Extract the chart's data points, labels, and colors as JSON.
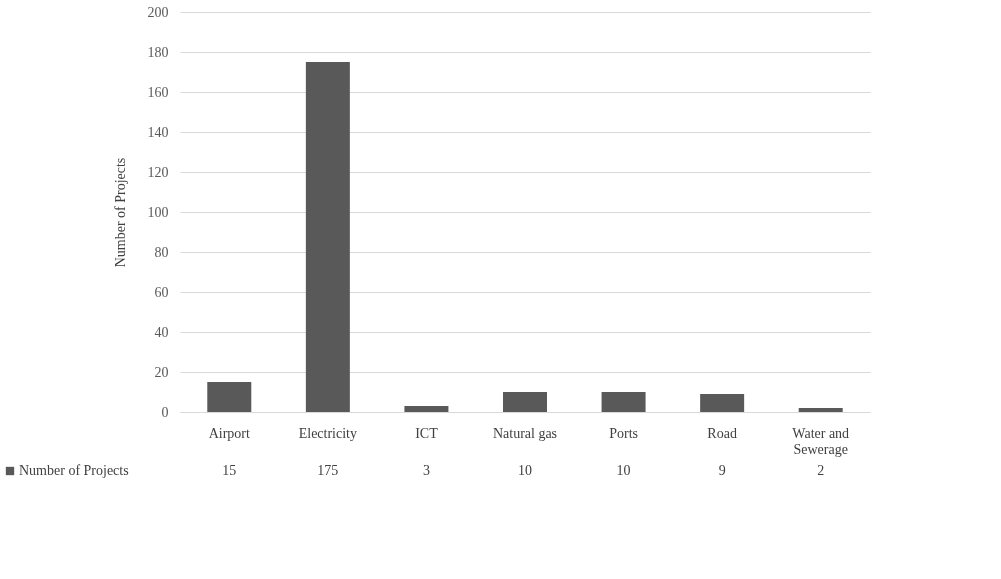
{
  "chart_data": {
    "type": "bar",
    "ylabel": "Number of Projects",
    "categories": [
      "Airport",
      "Electricity",
      "ICT",
      "Natural gas",
      "Ports",
      "Road",
      "Water and Sewerage"
    ],
    "series": [
      {
        "name": "Number of Projects",
        "color": "#595959",
        "values": [
          15,
          175,
          3,
          10,
          10,
          9,
          2
        ]
      }
    ],
    "ylim": [
      0,
      200
    ],
    "yticks": [
      0,
      20,
      40,
      60,
      80,
      100,
      120,
      140,
      160,
      180,
      200
    ],
    "grid": "y",
    "data_labels": true,
    "legend": "bottom left"
  }
}
